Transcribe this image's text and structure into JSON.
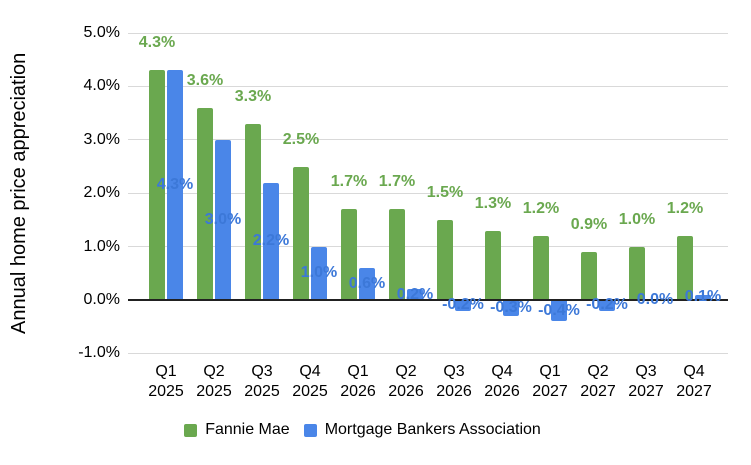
{
  "chart_data": {
    "type": "bar",
    "ylabel": "Annual home price appreciation",
    "categories": [
      {
        "quarter": "Q1",
        "year": "2025"
      },
      {
        "quarter": "Q2",
        "year": "2025"
      },
      {
        "quarter": "Q3",
        "year": "2025"
      },
      {
        "quarter": "Q4",
        "year": "2025"
      },
      {
        "quarter": "Q1",
        "year": "2026"
      },
      {
        "quarter": "Q2",
        "year": "2026"
      },
      {
        "quarter": "Q3",
        "year": "2026"
      },
      {
        "quarter": "Q4",
        "year": "2026"
      },
      {
        "quarter": "Q1",
        "year": "2027"
      },
      {
        "quarter": "Q2",
        "year": "2027"
      },
      {
        "quarter": "Q3",
        "year": "2027"
      },
      {
        "quarter": "Q4",
        "year": "2027"
      }
    ],
    "series": [
      {
        "name": "Fannie Mae",
        "bar_color": "#6aa84f",
        "label_color": "#6aa84f",
        "values": [
          4.3,
          3.6,
          3.3,
          2.5,
          1.7,
          1.7,
          1.5,
          1.3,
          1.2,
          0.9,
          1.0,
          1.2
        ],
        "labels": [
          "4.3%",
          "3.6%",
          "3.3%",
          "2.5%",
          "1.7%",
          "1.7%",
          "1.5%",
          "1.3%",
          "1.2%",
          "0.9%",
          "1.0%",
          "1.2%"
        ]
      },
      {
        "name": "Mortgage Bankers Association",
        "bar_color": "#4a86e8",
        "label_color": "#3c78d8",
        "values": [
          4.3,
          3.0,
          2.2,
          1.0,
          0.6,
          0.2,
          -0.2,
          -0.3,
          -0.4,
          -0.2,
          0.0,
          0.1
        ],
        "labels": [
          "4.3%",
          "3.0%",
          "2.2%",
          "1.0%",
          "0.6%",
          "0.2%",
          "-0.2%",
          "-0.3%",
          "-0.4%",
          "-0.2%",
          "0.0%",
          "0.1%"
        ]
      }
    ],
    "y_ticks": [
      {
        "value": 5,
        "label": "5.0%"
      },
      {
        "value": 4,
        "label": "4.0%"
      },
      {
        "value": 3,
        "label": "3.0%"
      },
      {
        "value": 2,
        "label": "2.0%"
      },
      {
        "value": 1,
        "label": "1.0%"
      },
      {
        "value": 0,
        "label": "0.0%"
      },
      {
        "value": -1,
        "label": "-1.0%"
      }
    ],
    "ylim": [
      -1.0,
      5.0
    ],
    "grid": true,
    "legend_position": "bottom",
    "colors": {
      "grid": "#d9d9d9",
      "axis": "#212121",
      "tick_text": "#000000",
      "background": "#ffffff"
    }
  }
}
